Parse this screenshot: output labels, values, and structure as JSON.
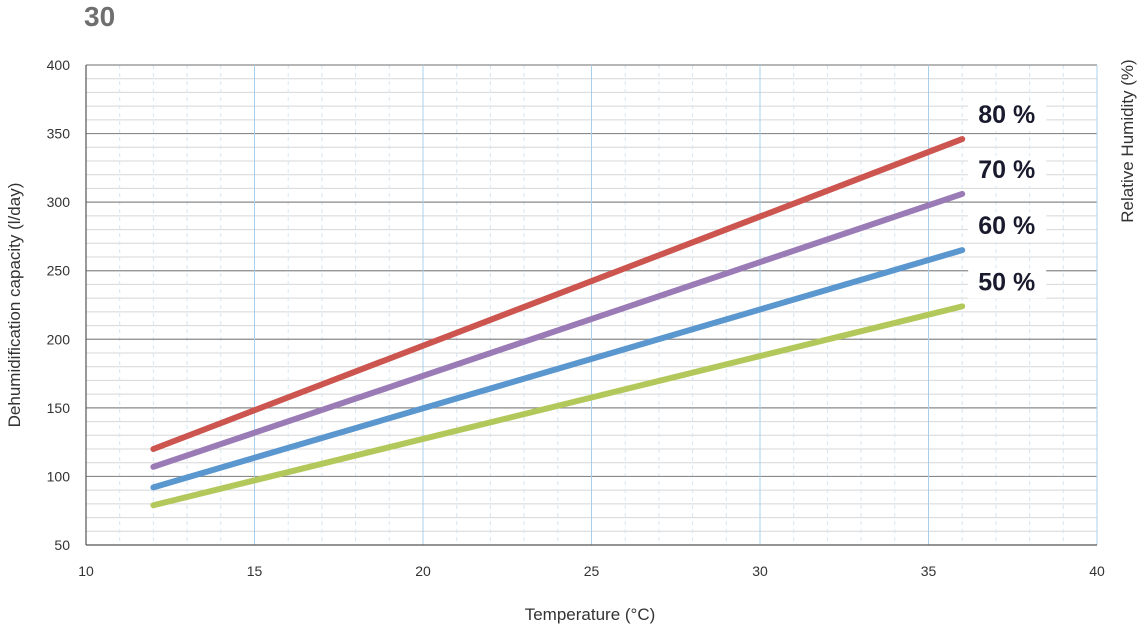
{
  "chart_data": {
    "type": "line",
    "title": "30",
    "xlabel": "Temperature (°C)",
    "ylabel": "Dehumidification capacity (l/day)",
    "y2label": "Relative Humidity (%)",
    "xlim": [
      10,
      40
    ],
    "ylim": [
      50,
      400
    ],
    "xticks": [
      "10",
      "15",
      "20",
      "25",
      "30",
      "35",
      "40"
    ],
    "yticks": [
      "50",
      "100",
      "150",
      "200",
      "250",
      "300",
      "350",
      "400"
    ],
    "grid": true,
    "series": [
      {
        "name": "80 %",
        "color": "#cc5550",
        "x": [
          12,
          36
        ],
        "y": [
          120,
          346
        ]
      },
      {
        "name": "70 %",
        "color": "#9b7bb5",
        "x": [
          12,
          36
        ],
        "y": [
          107,
          306
        ]
      },
      {
        "name": "60 %",
        "color": "#5b97cf",
        "x": [
          12,
          36
        ],
        "y": [
          92,
          265
        ]
      },
      {
        "name": "50 %",
        "color": "#b3c85a",
        "x": [
          12,
          36
        ],
        "y": [
          79,
          224
        ]
      }
    ]
  }
}
